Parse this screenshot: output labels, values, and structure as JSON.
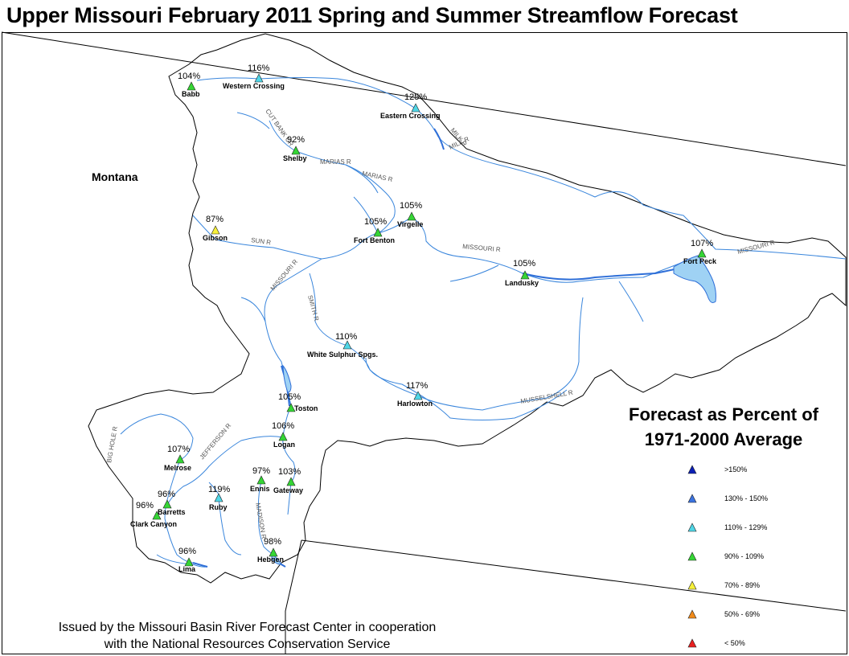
{
  "title": "Upper Missouri February 2011 Spring and Summer Streamflow Forecast",
  "state_label": "Montana",
  "footer": {
    "line1": "Issued by the Missouri Basin River Forecast Center in cooperation",
    "line2": "with the National Resources Conservation Service"
  },
  "legend": {
    "title_line1": "Forecast as Percent of",
    "title_line2": "1971-2000 Average",
    "items": [
      {
        "label": ">150%",
        "color": "#0b1fb5"
      },
      {
        "label": "130% - 150%",
        "color": "#3b73e0"
      },
      {
        "label": "110% - 129%",
        "color": "#4fd6e6"
      },
      {
        "label": "90% - 109%",
        "color": "#35d535"
      },
      {
        "label": "70% - 89%",
        "color": "#f6f03a"
      },
      {
        "label": "50% - 69%",
        "color": "#f08a1a"
      },
      {
        "label": "< 50%",
        "color": "#e82020"
      }
    ]
  },
  "stations": [
    {
      "name": "Babb",
      "percent": "104%",
      "class": "90% - 109%"
    },
    {
      "name": "Western Crossing",
      "percent": "116%",
      "class": "110% - 129%"
    },
    {
      "name": "Eastern Crossing",
      "percent": "125%",
      "class": "110% - 129%"
    },
    {
      "name": "Shelby",
      "percent": "92%",
      "class": "90% - 109%"
    },
    {
      "name": "Gibson",
      "percent": "87%",
      "class": "70% - 89%"
    },
    {
      "name": "Virgelle",
      "percent": "105%",
      "class": "90% - 109%"
    },
    {
      "name": "Fort Benton",
      "percent": "105%",
      "class": "90% - 109%"
    },
    {
      "name": "Landusky",
      "percent": "105%",
      "class": "90% - 109%"
    },
    {
      "name": "Fort Peck",
      "percent": "107%",
      "class": "90% - 109%"
    },
    {
      "name": "White Sulphur Spgs.",
      "percent": "110%",
      "class": "110% - 129%"
    },
    {
      "name": "Harlowton",
      "percent": "117%",
      "class": "110% - 129%"
    },
    {
      "name": "Toston",
      "percent": "105%",
      "class": "90% - 109%"
    },
    {
      "name": "Logan",
      "percent": "106%",
      "class": "90% - 109%"
    },
    {
      "name": "Melrose",
      "percent": "107%",
      "class": "90% - 109%"
    },
    {
      "name": "Ennis",
      "percent": "97%",
      "class": "90% - 109%"
    },
    {
      "name": "Gateway",
      "percent": "103%",
      "class": "90% - 109%"
    },
    {
      "name": "Ruby",
      "percent": "119%",
      "class": "110% - 129%"
    },
    {
      "name": "Barretts",
      "percent": "96%",
      "class": "90% - 109%"
    },
    {
      "name": "Clark Canyon",
      "percent": "96%",
      "class": "90% - 109%"
    },
    {
      "name": "Hebgen",
      "percent": "98%",
      "class": "90% - 109%"
    },
    {
      "name": "Lima",
      "percent": "96%",
      "class": "90% - 109%"
    }
  ],
  "rivers": [
    {
      "name": "CUT BANK CR"
    },
    {
      "name": "MILK R"
    },
    {
      "name": "MILK R"
    },
    {
      "name": "MARIAS R"
    },
    {
      "name": "MARIAS R"
    },
    {
      "name": "SUN R"
    },
    {
      "name": "MISSOURI R"
    },
    {
      "name": "MISSOURI R"
    },
    {
      "name": "MISSOURI R"
    },
    {
      "name": "SMITH R"
    },
    {
      "name": "MUSSELSHELL R"
    },
    {
      "name": "BIG HOLE R"
    },
    {
      "name": "JEFFERSON R"
    },
    {
      "name": "MADISON R"
    }
  ],
  "colors": {
    "river": "#3a86dc",
    "river_main": "#2f6fd8",
    "reservoir": "#9fd2f4",
    "outline": "#000000"
  }
}
